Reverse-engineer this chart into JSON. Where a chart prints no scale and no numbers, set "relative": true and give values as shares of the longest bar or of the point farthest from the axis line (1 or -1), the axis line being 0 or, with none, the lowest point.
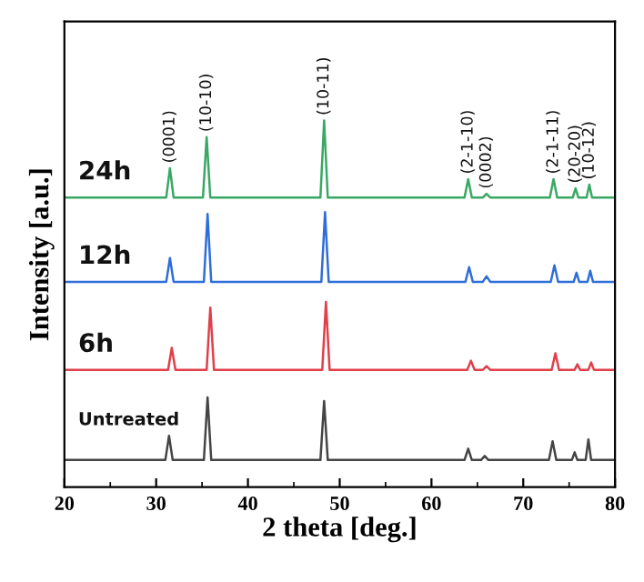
{
  "chart_data": {
    "type": "line",
    "relative": true,
    "xlabel": "2 theta [deg.]",
    "ylabel": "Intensity [a.u.]",
    "xlim": [
      20,
      80
    ],
    "xticks": [
      20,
      30,
      40,
      50,
      60,
      70,
      80
    ],
    "legend": false,
    "grid": false,
    "line_style": "solid",
    "marker": "none",
    "series": [
      {
        "name": "24h",
        "color": "#3aa864",
        "x": [
          20,
          31.1,
          31.5,
          31.9,
          35.1,
          35.5,
          35.9,
          47.9,
          48.3,
          48.7,
          63.6,
          64.0,
          64.4,
          65.6,
          66.0,
          66.4,
          72.9,
          73.3,
          73.7,
          75.4,
          75.7,
          76.0,
          76.9,
          77.2,
          77.5,
          80
        ],
        "values": [
          0.79,
          0.79,
          0.87,
          0.79,
          0.79,
          0.955,
          0.79,
          0.79,
          1.0,
          0.79,
          0.79,
          0.84,
          0.79,
          0.79,
          0.8,
          0.79,
          0.79,
          0.84,
          0.79,
          0.79,
          0.815,
          0.79,
          0.79,
          0.825,
          0.79,
          0.79
        ]
      },
      {
        "name": "12h",
        "color": "#2f6ed8",
        "x": [
          20,
          31.1,
          31.5,
          31.9,
          35.2,
          35.6,
          36.0,
          48.0,
          48.4,
          48.8,
          63.7,
          64.1,
          64.5,
          65.6,
          66.0,
          66.4,
          73.0,
          73.4,
          73.8,
          75.5,
          75.8,
          76.1,
          77.0,
          77.3,
          77.6,
          80
        ],
        "values": [
          0.56,
          0.56,
          0.625,
          0.56,
          0.56,
          0.745,
          0.56,
          0.56,
          0.75,
          0.56,
          0.56,
          0.6,
          0.56,
          0.56,
          0.575,
          0.56,
          0.56,
          0.605,
          0.56,
          0.56,
          0.585,
          0.56,
          0.56,
          0.59,
          0.56,
          0.56
        ]
      },
      {
        "name": "6h",
        "color": "#e0404a",
        "x": [
          20,
          31.3,
          31.7,
          32.1,
          35.5,
          35.9,
          36.3,
          48.1,
          48.5,
          48.9,
          63.9,
          64.3,
          64.7,
          65.6,
          66.0,
          66.4,
          73.1,
          73.5,
          73.9,
          75.6,
          75.9,
          76.2,
          77.1,
          77.4,
          77.7,
          80
        ],
        "values": [
          0.32,
          0.32,
          0.38,
          0.32,
          0.32,
          0.49,
          0.32,
          0.32,
          0.505,
          0.32,
          0.32,
          0.345,
          0.32,
          0.32,
          0.33,
          0.32,
          0.32,
          0.365,
          0.32,
          0.32,
          0.335,
          0.32,
          0.32,
          0.34,
          0.32,
          0.32
        ]
      },
      {
        "name": "Untreated",
        "color": "#454545",
        "x": [
          20,
          31.0,
          31.4,
          31.8,
          35.2,
          35.6,
          36.0,
          47.9,
          48.3,
          48.7,
          63.6,
          64.0,
          64.4,
          65.4,
          65.8,
          66.2,
          72.8,
          73.2,
          73.6,
          75.3,
          75.6,
          75.9,
          76.8,
          77.1,
          77.4,
          80
        ],
        "values": [
          0.074,
          0.074,
          0.14,
          0.074,
          0.074,
          0.245,
          0.074,
          0.074,
          0.235,
          0.074,
          0.074,
          0.105,
          0.074,
          0.074,
          0.085,
          0.074,
          0.074,
          0.125,
          0.074,
          0.074,
          0.095,
          0.074,
          0.074,
          0.13,
          0.074,
          0.074
        ]
      }
    ],
    "annotations": [
      {
        "text": "(0001)",
        "x": 31.5,
        "y": 0.87
      },
      {
        "text": "(10-10)",
        "x": 35.5,
        "y": 0.955
      },
      {
        "text": "(10-11)",
        "x": 48.3,
        "y": 1.0
      },
      {
        "text": "(2-1-10)",
        "x": 64.0,
        "y": 0.84
      },
      {
        "text": "(0002)",
        "x": 66.0,
        "y": 0.8
      },
      {
        "text": "(2-1-11)",
        "x": 73.3,
        "y": 0.84
      },
      {
        "text": "(20-20)",
        "x": 75.7,
        "y": 0.815
      },
      {
        "text": "(10-12)",
        "x": 77.2,
        "y": 0.825
      }
    ]
  }
}
